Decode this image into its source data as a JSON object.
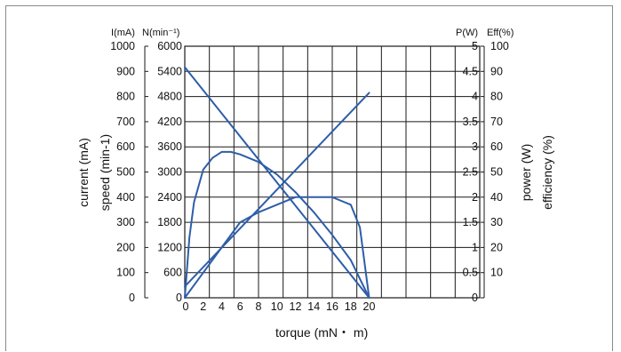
{
  "chart_data": {
    "type": "line",
    "x": {
      "label": "torque (mN・ m)",
      "range": [
        0,
        32
      ],
      "ticks": [
        0,
        2,
        4,
        6,
        8,
        10,
        12,
        14,
        16,
        18,
        20
      ],
      "tick_labels": [
        "0",
        "2",
        "4",
        "6",
        "8",
        "10",
        "12",
        "14",
        "16",
        "18",
        "20"
      ],
      "grid_columns": 12
    },
    "axes": {
      "current": {
        "side": "left-outer",
        "header": "I(mA)",
        "label": "current (mA)",
        "range": [
          0,
          1000
        ],
        "tick_labels": [
          "1000",
          "900",
          "800",
          "700",
          "600",
          "500",
          "400",
          "300",
          "200",
          "100",
          "0"
        ]
      },
      "speed": {
        "side": "left-inner",
        "header": "N(min⁻¹)",
        "label": "speed (min-1)",
        "range": [
          0,
          6000
        ],
        "tick_labels": [
          "6000",
          "5400",
          "4800",
          "4200",
          "3600",
          "3000",
          "2400",
          "1800",
          "1200",
          "600",
          "0"
        ]
      },
      "power": {
        "side": "right-inner",
        "header": "P(W)",
        "label": "power (W)",
        "range": [
          0,
          5
        ],
        "tick_labels": [
          "5",
          "4.5",
          "4",
          "3.5",
          "3",
          "2.5",
          "2",
          "1.5",
          "1",
          "0.5",
          "0"
        ]
      },
      "efficiency": {
        "side": "right-outer",
        "header": "Eff(%)",
        "label": "efficiency (%)",
        "range": [
          0,
          100
        ],
        "tick_labels": [
          "100",
          "90",
          "80",
          "70",
          "60",
          "50",
          "40",
          "30",
          "20",
          "10",
          ""
        ]
      }
    },
    "series": [
      {
        "axis": "speed",
        "points": [
          [
            0,
            5500
          ],
          [
            20,
            0
          ]
        ]
      },
      {
        "axis": "current",
        "points": [
          [
            0,
            45
          ],
          [
            20,
            815
          ]
        ]
      },
      {
        "axis": "power",
        "points": [
          [
            0,
            0
          ],
          [
            0.5,
            1.2
          ],
          [
            1,
            1.9
          ],
          [
            2,
            2.55
          ],
          [
            3,
            2.78
          ],
          [
            4,
            2.9
          ],
          [
            5,
            2.9
          ],
          [
            6,
            2.85
          ],
          [
            8,
            2.7
          ],
          [
            10,
            2.45
          ],
          [
            12,
            2.1
          ],
          [
            14,
            1.7
          ],
          [
            16,
            1.25
          ],
          [
            18,
            0.75
          ],
          [
            20,
            0
          ]
        ]
      },
      {
        "axis": "efficiency",
        "points": [
          [
            0,
            0
          ],
          [
            2,
            10
          ],
          [
            4,
            20
          ],
          [
            6,
            30
          ],
          [
            8,
            34
          ],
          [
            10,
            37
          ],
          [
            12,
            40
          ],
          [
            14,
            40
          ],
          [
            16,
            40
          ],
          [
            18,
            37
          ],
          [
            19,
            28
          ],
          [
            20,
            0
          ]
        ]
      }
    ],
    "grid": true,
    "color": "#2e5ea8"
  }
}
